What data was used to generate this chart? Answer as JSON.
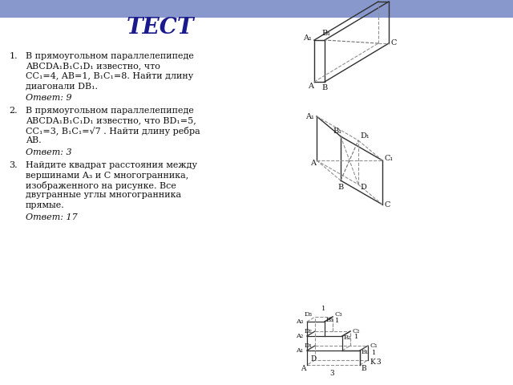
{
  "title": "ТЕСТ",
  "title_color": "#1a1a8c",
  "bg_color": "#f0f0f8",
  "header_color": "#6070c0",
  "text_color": "#111111",
  "line_color": "#303030",
  "dash_color": "#909090",
  "problems": [
    {
      "lines": [
        "В прямоугольном параллелепипеде",
        "ABCDA₁B₁C₁D₁ известно, что",
        "CC₁=4, AB=1, B₁C₁=8. Найти длину",
        "диагонали DB₁."
      ],
      "answer": "Ответ: 9"
    },
    {
      "lines": [
        "В прямоугольном параллелепипеде",
        "ABCDA₁B₁C₁D₁ известно, что BD₁=5,",
        "CC₁=3, B₁C₁=√7 . Найти длину ребра",
        "AB."
      ],
      "answer": "Ответ: 3"
    },
    {
      "lines": [
        "Найдите квадрат расстояния между",
        "вершинами A₃ и C многогранника,",
        "изображенного на рисунке. Все",
        "двугранные углы многогранника",
        "прямые."
      ],
      "answer": "Ответ: 17"
    }
  ]
}
